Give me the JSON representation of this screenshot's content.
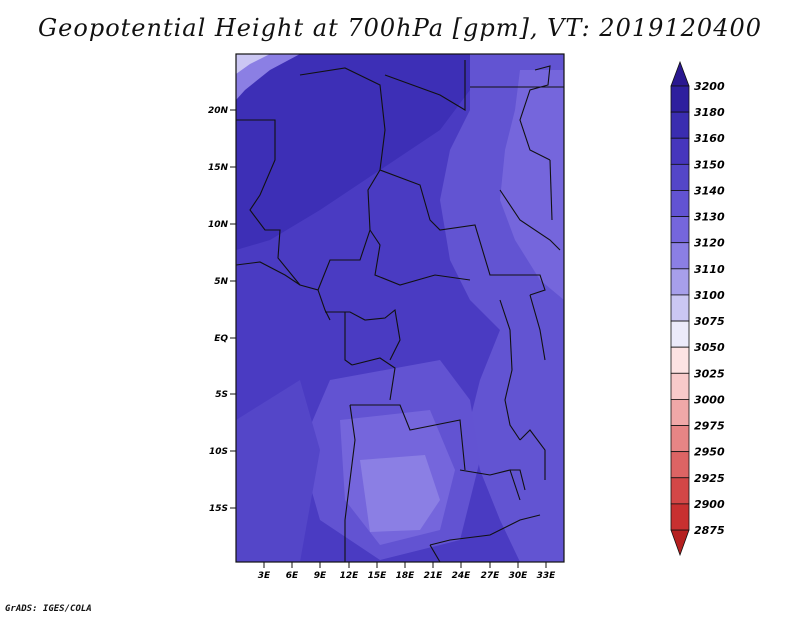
{
  "title": "Geopotential Height at 700hPa [gpm], VT: 2019120400",
  "credit": "GrADS: IGES/COLA",
  "map": {
    "lat_labels": [
      "20N",
      "15N",
      "10N",
      "5N",
      "EQ",
      "5S",
      "10S",
      "15S"
    ],
    "lon_labels": [
      "3E",
      "6E",
      "9E",
      "12E",
      "15E",
      "18E",
      "21E",
      "24E",
      "27E",
      "30E",
      "33E"
    ]
  },
  "colorbar": {
    "levels": [
      "3200",
      "3180",
      "3160",
      "3150",
      "3140",
      "3130",
      "3120",
      "3110",
      "3100",
      "3075",
      "3050",
      "3025",
      "3000",
      "2975",
      "2950",
      "2925",
      "2900",
      "2875"
    ],
    "colors": [
      "#2e1f9e",
      "#3a2db0",
      "#4636bd",
      "#5446c8",
      "#6253d2",
      "#7566dc",
      "#8b7fe4",
      "#a79feb",
      "#cbc7f3",
      "#ecebfa",
      "#fde3e3",
      "#f8caca",
      "#f0a8a8",
      "#e78585",
      "#dd6464",
      "#d34747",
      "#c83030",
      "#b52020"
    ],
    "top_arrow_color": "#2a1890",
    "bottom_arrow_color": "#b52020"
  }
}
